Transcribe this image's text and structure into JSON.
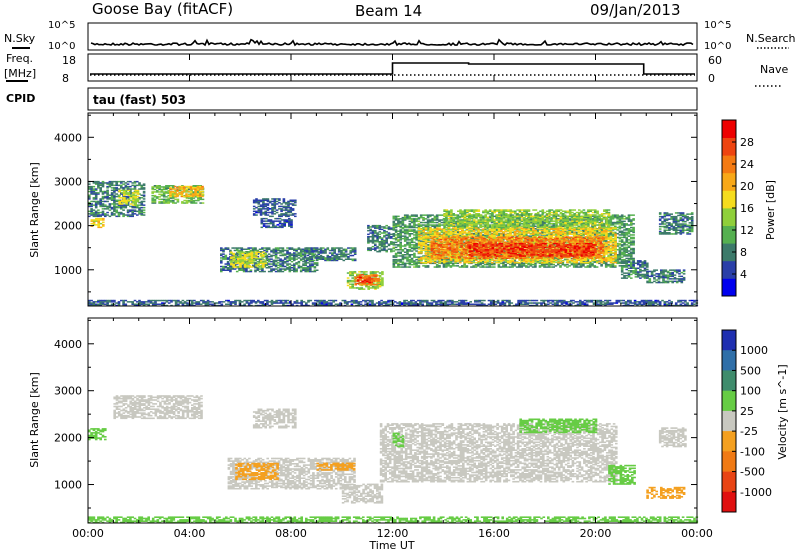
{
  "header": {
    "station": "Goose Bay (fitACF)",
    "beam": "Beam 14",
    "date": "09/Jan/2013"
  },
  "status_panels": {
    "nsky_label": "N.Sky",
    "nsearch_label": "N.Search",
    "noise_ticks": [
      "10^5",
      "10^0"
    ],
    "freq_label": "Freq.",
    "freq_unit": "[MHz]",
    "freq_ticks": [
      "18",
      "8"
    ],
    "nave_label": "Nave",
    "nave_ticks": [
      "60",
      "0"
    ],
    "cpid_label": "CPID",
    "cpid_value": "tau (fast) 503"
  },
  "colorbars": {
    "power": {
      "label": "Power [dB]",
      "ticks": [
        "4",
        "8",
        "12",
        "16",
        "20",
        "24",
        "28"
      ],
      "colors": [
        "#0000ee",
        "#2a3fa8",
        "#3c7a6a",
        "#55b050",
        "#8fcf3a",
        "#f5dc1e",
        "#f8a818",
        "#f47a12",
        "#ee4410",
        "#ee0000"
      ]
    },
    "velocity": {
      "label": "Velocity [m s^-1]",
      "ticks": [
        "1000",
        "500",
        "100",
        "25",
        "-25",
        "-100",
        "-500",
        "-1000"
      ],
      "colors": [
        "#1f2fb0",
        "#2f6fa8",
        "#3f8c6c",
        "#66cc44",
        "#c8c8c0",
        "#f4a020",
        "#f07a14",
        "#e84414",
        "#e01010"
      ]
    }
  },
  "chart_data": [
    {
      "type": "heatmap",
      "title": "Power",
      "xlabel": "Time UT",
      "ylabel": "Slant Range [km]",
      "x_ticks": [
        "00:00",
        "04:00",
        "08:00",
        "12:00",
        "16:00",
        "20:00",
        "00:00"
      ],
      "xlim_hours": [
        0,
        24
      ],
      "y_ticks": [
        1000,
        2000,
        3000,
        4000
      ],
      "ylim": [
        180,
        4550
      ],
      "color_scale": "Power [dB]",
      "cbar_range": [
        0,
        32
      ],
      "regions": [
        {
          "t0": 0.0,
          "t1": 2.2,
          "r0": 2200,
          "r1": 3000,
          "value": 8
        },
        {
          "t0": 0.1,
          "t1": 0.6,
          "r0": 1950,
          "r1": 2150,
          "value": 18
        },
        {
          "t0": 1.2,
          "t1": 2.0,
          "r0": 2450,
          "r1": 2800,
          "value": 16
        },
        {
          "t0": 2.5,
          "t1": 4.5,
          "r0": 2500,
          "r1": 2900,
          "value": 12
        },
        {
          "t0": 3.2,
          "t1": 4.5,
          "r0": 2650,
          "r1": 2900,
          "value": 20
        },
        {
          "t0": 5.2,
          "t1": 9.0,
          "r0": 950,
          "r1": 1500,
          "value": 8
        },
        {
          "t0": 5.6,
          "t1": 7.0,
          "r0": 1050,
          "r1": 1400,
          "value": 16
        },
        {
          "t0": 8.5,
          "t1": 10.5,
          "r0": 1200,
          "r1": 1500,
          "value": 8
        },
        {
          "t0": 6.5,
          "t1": 8.2,
          "r0": 2200,
          "r1": 2600,
          "value": 6
        },
        {
          "t0": 6.8,
          "t1": 8.0,
          "r0": 1950,
          "r1": 2150,
          "value": 6
        },
        {
          "t0": 10.2,
          "t1": 11.6,
          "r0": 550,
          "r1": 950,
          "value": 14
        },
        {
          "t0": 10.5,
          "t1": 11.4,
          "r0": 650,
          "r1": 880,
          "value": 24
        },
        {
          "t0": 10.6,
          "t1": 11.2,
          "r0": 700,
          "r1": 820,
          "value": 28
        },
        {
          "t0": 11.0,
          "t1": 11.9,
          "r0": 1400,
          "r1": 2000,
          "value": 8
        },
        {
          "t0": 12.0,
          "t1": 21.5,
          "r0": 1050,
          "r1": 2250,
          "value": 10
        },
        {
          "t0": 13.0,
          "t1": 20.8,
          "r0": 1150,
          "r1": 1950,
          "value": 18
        },
        {
          "t0": 13.5,
          "t1": 20.3,
          "r0": 1250,
          "r1": 1750,
          "value": 24
        },
        {
          "t0": 15.0,
          "t1": 20.0,
          "r0": 1300,
          "r1": 1600,
          "value": 28
        },
        {
          "t0": 14.0,
          "t1": 20.5,
          "r0": 1950,
          "r1": 2350,
          "value": 14
        },
        {
          "t0": 21.0,
          "t1": 22.0,
          "r0": 800,
          "r1": 1200,
          "value": 8
        },
        {
          "t0": 22.0,
          "t1": 23.5,
          "r0": 700,
          "r1": 1000,
          "value": 8
        },
        {
          "t0": 22.5,
          "t1": 23.8,
          "r0": 1800,
          "r1": 2300,
          "value": 8
        },
        {
          "t0": 0.0,
          "t1": 24.0,
          "r0": 180,
          "r1": 300,
          "value": 6
        }
      ]
    },
    {
      "type": "heatmap",
      "title": "Velocity",
      "xlabel": "Time UT",
      "ylabel": "Slant Range [km]",
      "x_ticks": [
        "00:00",
        "04:00",
        "08:00",
        "12:00",
        "16:00",
        "20:00",
        "00:00"
      ],
      "xlim_hours": [
        0,
        24
      ],
      "y_ticks": [
        1000,
        2000,
        3000,
        4000
      ],
      "ylim": [
        180,
        4550
      ],
      "color_scale": "Velocity [m s^-1]",
      "regions": [
        {
          "t0": 1.0,
          "t1": 4.5,
          "r0": 2400,
          "r1": 2900,
          "value": 0
        },
        {
          "t0": 0.0,
          "t1": 0.7,
          "r0": 1950,
          "r1": 2200,
          "value": 150
        },
        {
          "t0": 6.5,
          "t1": 8.2,
          "r0": 2200,
          "r1": 2600,
          "value": 0
        },
        {
          "t0": 5.5,
          "t1": 10.5,
          "r0": 900,
          "r1": 1550,
          "value": 0
        },
        {
          "t0": 5.8,
          "t1": 7.5,
          "r0": 1100,
          "r1": 1450,
          "value": -200
        },
        {
          "t0": 9.0,
          "t1": 10.5,
          "r0": 1300,
          "r1": 1450,
          "value": -200
        },
        {
          "t0": 10.0,
          "t1": 11.6,
          "r0": 600,
          "r1": 1000,
          "value": 0
        },
        {
          "t0": 11.5,
          "t1": 20.8,
          "r0": 1050,
          "r1": 2300,
          "value": 0
        },
        {
          "t0": 12.0,
          "t1": 12.4,
          "r0": 1800,
          "r1": 2100,
          "value": 150
        },
        {
          "t0": 17.0,
          "t1": 20.0,
          "r0": 2100,
          "r1": 2400,
          "value": 150
        },
        {
          "t0": 20.5,
          "t1": 21.5,
          "r0": 1000,
          "r1": 1400,
          "value": 150
        },
        {
          "t0": 22.0,
          "t1": 23.5,
          "r0": 700,
          "r1": 950,
          "value": -200
        },
        {
          "t0": 22.5,
          "t1": 23.5,
          "r0": 1800,
          "r1": 2200,
          "value": 0
        },
        {
          "t0": 0.0,
          "t1": 24.0,
          "r0": 180,
          "r1": 300,
          "value": 150
        }
      ]
    }
  ]
}
